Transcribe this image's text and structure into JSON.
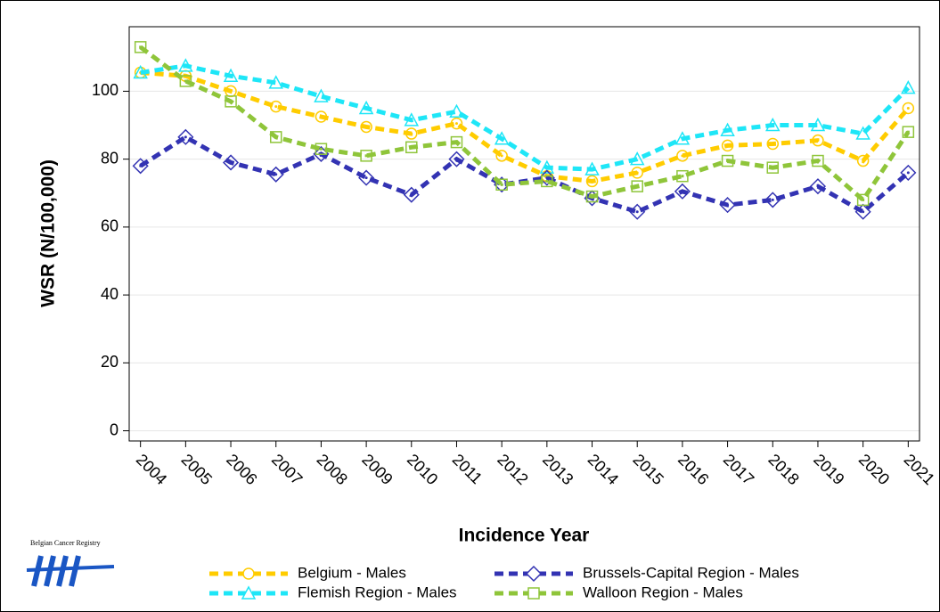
{
  "chart_data": {
    "type": "line",
    "y_label": "WSR (N/100,000)",
    "x_label": "Incidence Year",
    "x": [
      2004,
      2005,
      2006,
      2007,
      2008,
      2009,
      2010,
      2011,
      2012,
      2013,
      2014,
      2015,
      2016,
      2017,
      2018,
      2019,
      2020,
      2021
    ],
    "xlim": [
      2003.75,
      2021.25
    ],
    "xticks": [
      2004,
      2005,
      2006,
      2007,
      2008,
      2009,
      2010,
      2011,
      2012,
      2013,
      2014,
      2015,
      2016,
      2017,
      2018,
      2019,
      2020,
      2021
    ],
    "ylim": [
      -3,
      119
    ],
    "yticks": [
      0,
      20,
      40,
      60,
      80,
      100
    ],
    "grid": true,
    "series": [
      {
        "name": "Belgium - Males",
        "color": "#ffcc00",
        "marker": "circle",
        "values": [
          105.5,
          104.5,
          100,
          95.5,
          92.5,
          89.5,
          87.5,
          90.5,
          81,
          75,
          73.5,
          76,
          81,
          84,
          84.5,
          85.5,
          79.5,
          95
        ]
      },
      {
        "name": "Flemish Region - Males",
        "color": "#1ee6f7",
        "marker": "triangle",
        "values": [
          105.5,
          107.5,
          104.5,
          102.5,
          98.5,
          95,
          91.5,
          94,
          86,
          77.5,
          77,
          80,
          86,
          88.5,
          90,
          90,
          87.5,
          101
        ]
      },
      {
        "name": "Brussels-Capital Region - Males",
        "color": "#3333b3",
        "marker": "diamond",
        "values": [
          78,
          86.5,
          79,
          75.5,
          81.5,
          74.5,
          69.5,
          80,
          72.5,
          74.5,
          68.5,
          64.5,
          70.5,
          66.5,
          68,
          72,
          64.5,
          76
        ]
      },
      {
        "name": "Walloon Region - Males",
        "color": "#8fc53a",
        "marker": "square",
        "values": [
          113,
          103,
          97,
          86.5,
          83,
          81,
          83.5,
          85,
          72.5,
          73.5,
          69,
          72,
          75,
          79.5,
          77.5,
          79.5,
          68,
          88
        ]
      }
    ],
    "logo": "Belgian Cancer Registry"
  }
}
